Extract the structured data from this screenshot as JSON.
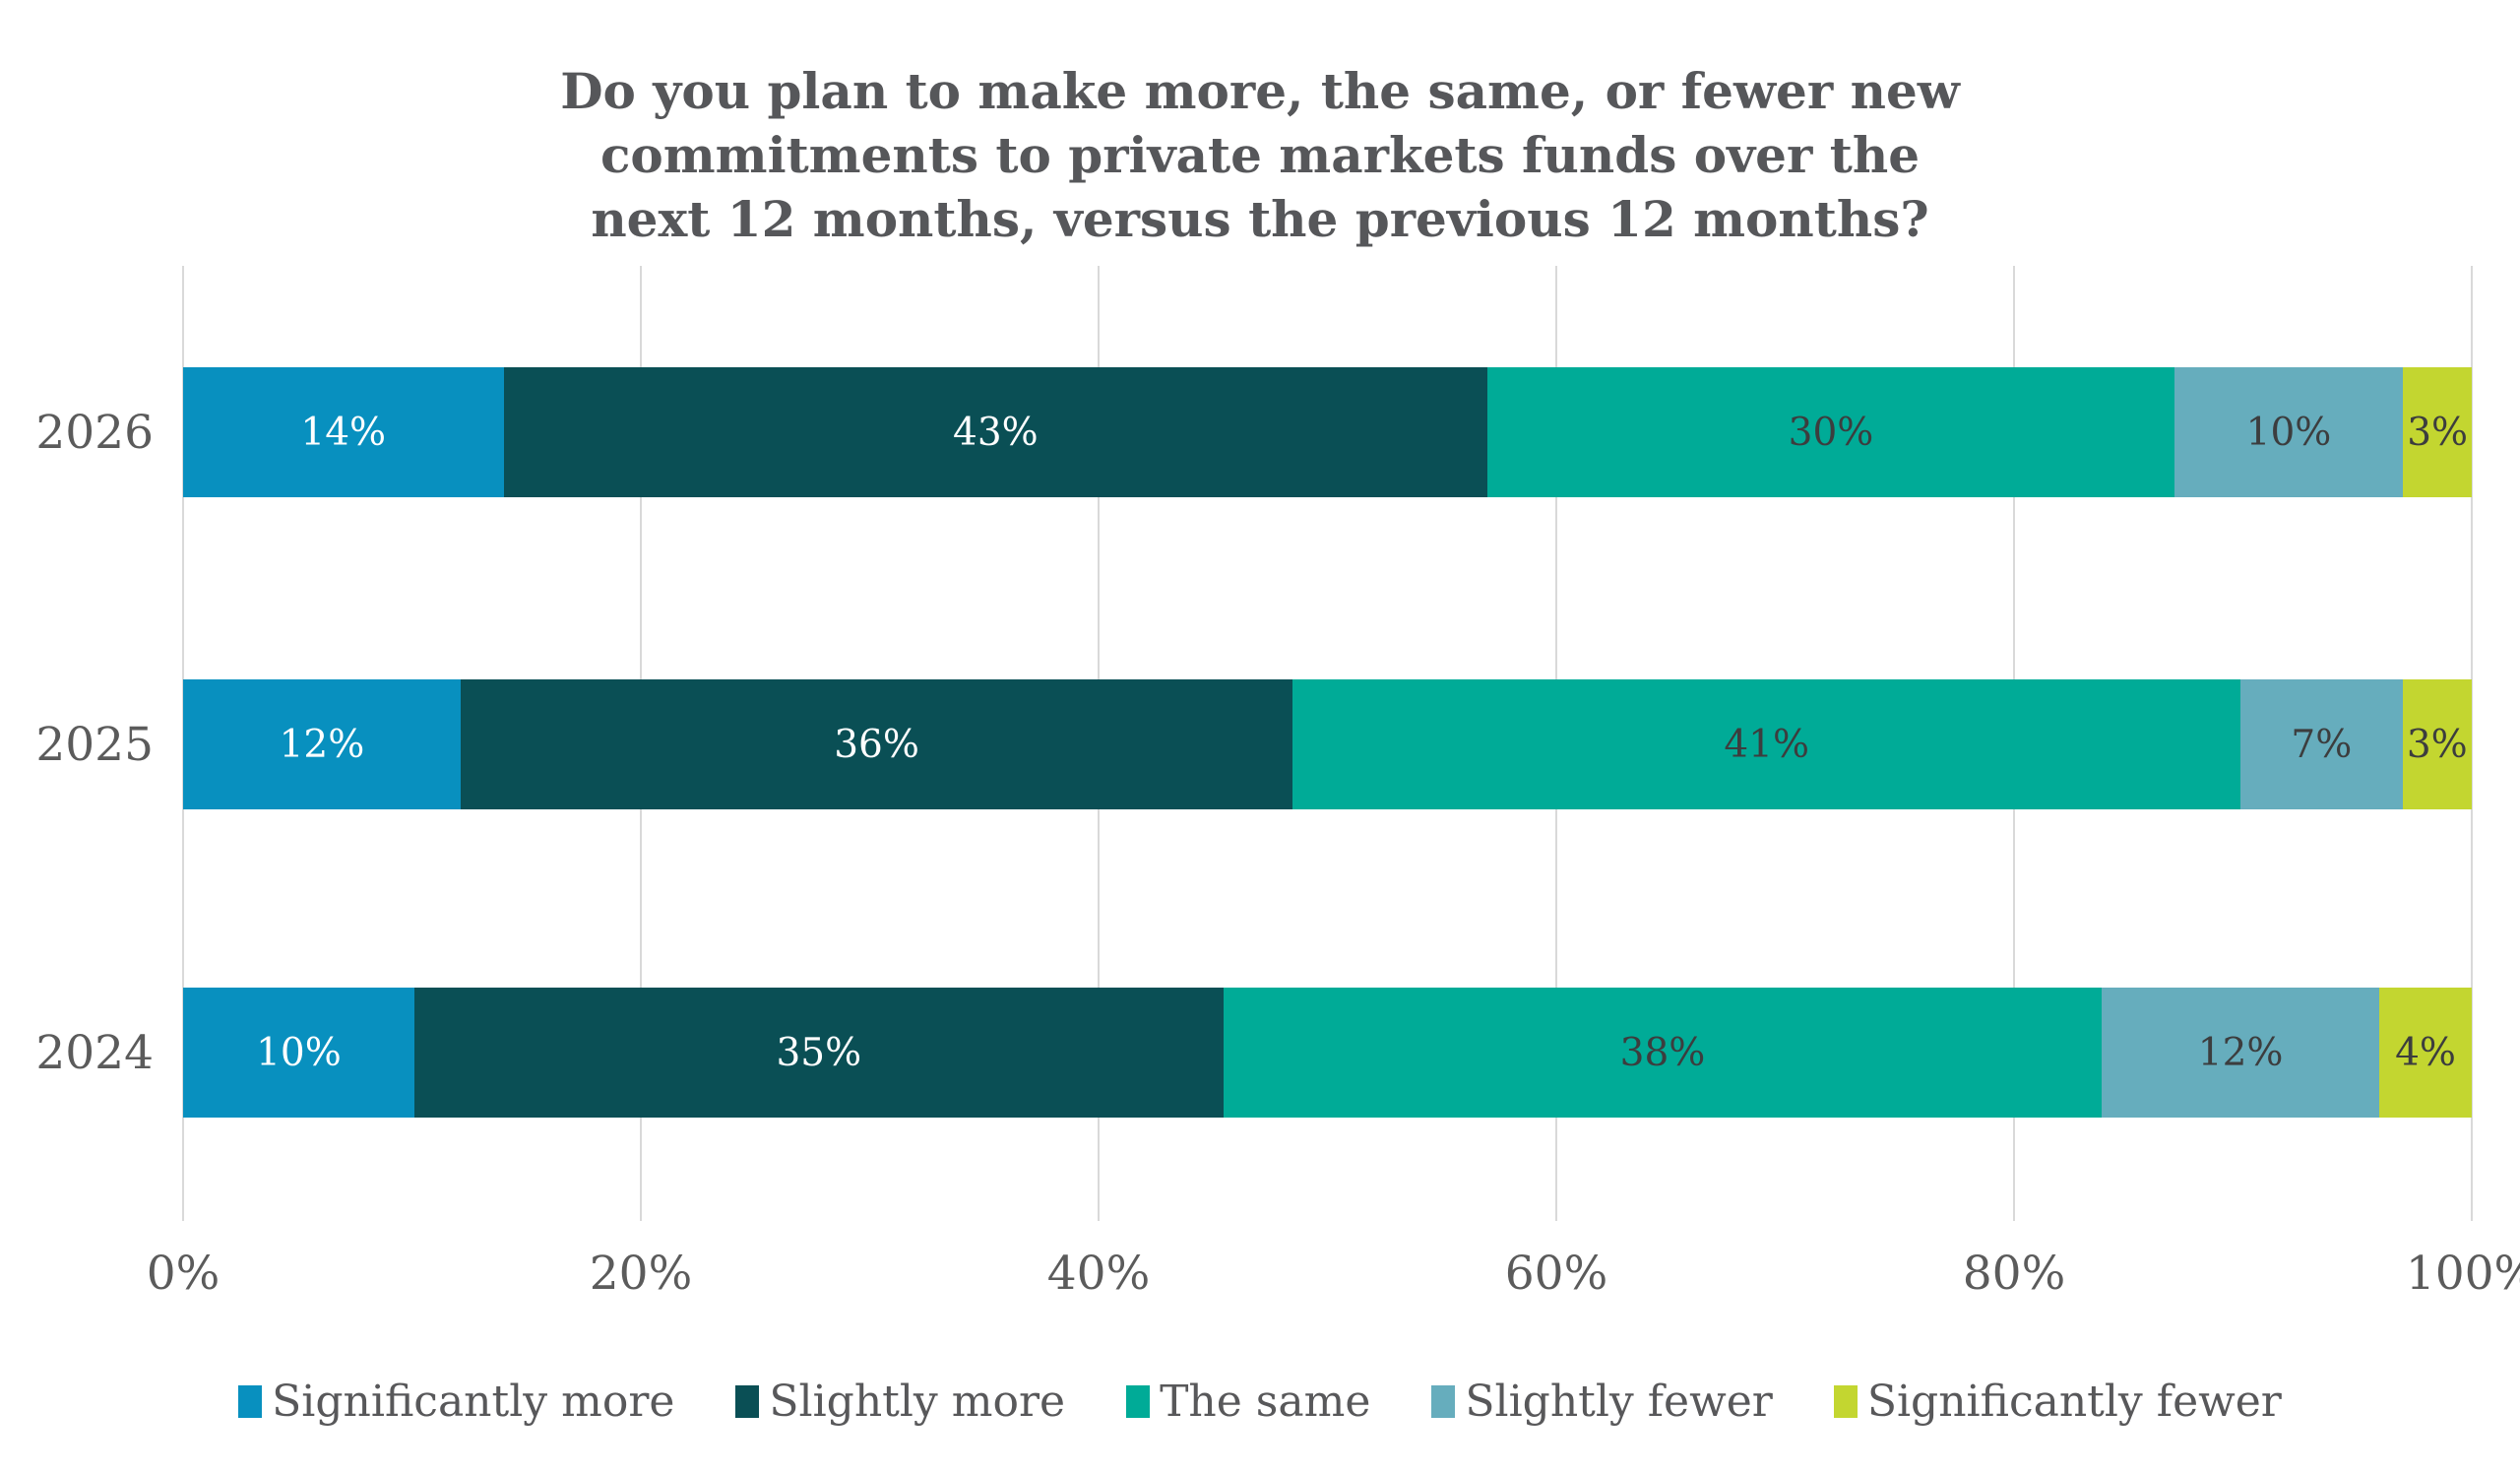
{
  "title": "Do you plan to make more, the same, or fewer new commitments to private markets funds over the next 12 months, versus the previous 12 months?",
  "colors": {
    "background": "#ffffff",
    "title_text": "#56575a",
    "axis_text": "#5b5b5b",
    "gridline": "#d9d9d9",
    "dark_value_label": "#3c3d3e",
    "light_value_label": "#ffffff"
  },
  "chart_data": {
    "type": "bar",
    "stacked": true,
    "orientation": "horizontal",
    "title": "Do you plan to make more, the same, or fewer new commitments to private markets funds over the next 12 months, versus the previous 12 months?",
    "categories": [
      "2026",
      "2025",
      "2024"
    ],
    "series": [
      {
        "name": "Significantly more",
        "color": "#0890bf",
        "label_color": "#ffffff",
        "values": [
          14,
          12,
          10
        ]
      },
      {
        "name": "Slightly more",
        "color": "#0a4f55",
        "label_color": "#ffffff",
        "values": [
          43,
          36,
          35
        ]
      },
      {
        "name": "The same",
        "color": "#00ab97",
        "label_color": "#3c3d3e",
        "values": [
          30,
          41,
          38
        ]
      },
      {
        "name": "Slightly fewer",
        "color": "#66adbd",
        "label_color": "#3c3d3e",
        "values": [
          10,
          7,
          12
        ]
      },
      {
        "name": "Significantly fewer",
        "color": "#c3d630",
        "label_color": "#3c3d3e",
        "values": [
          3,
          3,
          4
        ]
      }
    ],
    "value_suffix": "%",
    "x_ticks": [
      "0%",
      "20%",
      "40%",
      "60%",
      "80%",
      "100%"
    ],
    "xlim": [
      0,
      100
    ],
    "grid": "vertical",
    "legend_position": "bottom",
    "value_labels": "inside-center"
  }
}
